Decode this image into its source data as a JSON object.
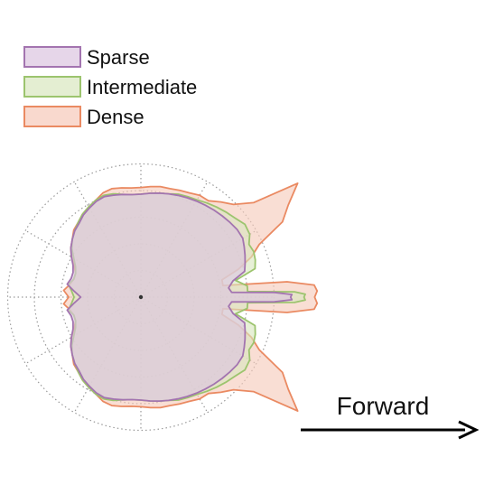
{
  "chart_data": {
    "type": "polar-area",
    "direction_label": "Forward",
    "grid": true,
    "legend_position": "top-left",
    "rings": 5,
    "series": [
      {
        "name": "Dense",
        "fill": "#f6c9b9",
        "stroke": "#ea8a62",
        "points": [
          [
            0,
            1.3
          ],
          [
            2,
            1.32
          ],
          [
            4,
            1.3
          ],
          [
            6,
            1.1
          ],
          [
            8,
            0.62
          ],
          [
            12,
            0.62
          ],
          [
            16,
            0.76
          ],
          [
            20,
            0.88
          ],
          [
            24,
            0.97
          ],
          [
            28,
            1.2
          ],
          [
            32,
            1.3
          ],
          [
            36,
            1.45
          ],
          [
            40,
            1.1
          ],
          [
            45,
            0.98
          ],
          [
            50,
            0.93
          ],
          [
            55,
            0.88
          ],
          [
            60,
            0.88
          ],
          [
            65,
            0.86
          ],
          [
            70,
            0.85
          ],
          [
            75,
            0.84
          ],
          [
            80,
            0.84
          ],
          [
            85,
            0.83
          ],
          [
            90,
            0.82
          ],
          [
            95,
            0.82
          ],
          [
            100,
            0.83
          ],
          [
            105,
            0.84
          ],
          [
            110,
            0.83
          ],
          [
            115,
            0.8
          ],
          [
            120,
            0.78
          ],
          [
            125,
            0.76
          ],
          [
            130,
            0.73
          ],
          [
            135,
            0.71
          ],
          [
            140,
            0.67
          ],
          [
            145,
            0.64
          ],
          [
            150,
            0.6
          ],
          [
            155,
            0.55
          ],
          [
            160,
            0.52
          ],
          [
            165,
            0.52
          ],
          [
            170,
            0.54
          ],
          [
            175,
            0.58
          ],
          [
            180,
            0.54
          ],
          [
            185,
            0.58
          ],
          [
            190,
            0.54
          ],
          [
            195,
            0.52
          ],
          [
            200,
            0.52
          ],
          [
            205,
            0.55
          ],
          [
            210,
            0.6
          ],
          [
            215,
            0.64
          ],
          [
            220,
            0.67
          ],
          [
            225,
            0.71
          ],
          [
            230,
            0.73
          ],
          [
            235,
            0.76
          ],
          [
            240,
            0.78
          ],
          [
            245,
            0.8
          ],
          [
            250,
            0.83
          ],
          [
            255,
            0.84
          ],
          [
            260,
            0.83
          ],
          [
            265,
            0.82
          ],
          [
            270,
            0.82
          ],
          [
            275,
            0.83
          ],
          [
            280,
            0.84
          ],
          [
            285,
            0.84
          ],
          [
            290,
            0.85
          ],
          [
            295,
            0.86
          ],
          [
            300,
            0.88
          ],
          [
            305,
            0.88
          ],
          [
            310,
            0.93
          ],
          [
            315,
            0.98
          ],
          [
            320,
            1.1
          ],
          [
            324,
            1.45
          ],
          [
            328,
            1.3
          ],
          [
            332,
            1.2
          ],
          [
            336,
            0.97
          ],
          [
            340,
            0.88
          ],
          [
            344,
            0.76
          ],
          [
            348,
            0.62
          ],
          [
            352,
            0.62
          ],
          [
            354,
            1.1
          ],
          [
            356,
            1.3
          ],
          [
            358,
            1.32
          ]
        ]
      },
      {
        "name": "Intermediate",
        "fill": "#d9e7bf",
        "stroke": "#9cc46e",
        "points": [
          [
            0,
            1.22
          ],
          [
            1,
            1.23
          ],
          [
            2,
            1.15
          ],
          [
            3,
            0.8
          ],
          [
            6,
            0.8
          ],
          [
            10,
            0.72
          ],
          [
            14,
            0.88
          ],
          [
            18,
            0.9
          ],
          [
            22,
            0.91
          ],
          [
            26,
            0.9
          ],
          [
            30,
            0.94
          ],
          [
            35,
            0.95
          ],
          [
            40,
            0.92
          ],
          [
            45,
            0.9
          ],
          [
            50,
            0.88
          ],
          [
            55,
            0.86
          ],
          [
            60,
            0.84
          ],
          [
            65,
            0.83
          ],
          [
            70,
            0.82
          ],
          [
            75,
            0.8
          ],
          [
            80,
            0.79
          ],
          [
            85,
            0.78
          ],
          [
            90,
            0.77
          ],
          [
            95,
            0.77
          ],
          [
            100,
            0.78
          ],
          [
            105,
            0.8
          ],
          [
            110,
            0.81
          ],
          [
            115,
            0.8
          ],
          [
            120,
            0.78
          ],
          [
            125,
            0.76
          ],
          [
            130,
            0.73
          ],
          [
            135,
            0.7
          ],
          [
            140,
            0.67
          ],
          [
            145,
            0.63
          ],
          [
            150,
            0.58
          ],
          [
            155,
            0.54
          ],
          [
            160,
            0.52
          ],
          [
            165,
            0.52
          ],
          [
            170,
            0.55
          ],
          [
            175,
            0.52
          ],
          [
            180,
            0.5
          ],
          [
            185,
            0.52
          ],
          [
            190,
            0.55
          ],
          [
            195,
            0.52
          ],
          [
            200,
            0.52
          ],
          [
            205,
            0.54
          ],
          [
            210,
            0.58
          ],
          [
            215,
            0.63
          ],
          [
            220,
            0.67
          ],
          [
            225,
            0.7
          ],
          [
            230,
            0.73
          ],
          [
            235,
            0.76
          ],
          [
            240,
            0.78
          ],
          [
            245,
            0.8
          ],
          [
            250,
            0.81
          ],
          [
            255,
            0.8
          ],
          [
            260,
            0.78
          ],
          [
            265,
            0.77
          ],
          [
            270,
            0.77
          ],
          [
            275,
            0.78
          ],
          [
            280,
            0.79
          ],
          [
            285,
            0.8
          ],
          [
            290,
            0.82
          ],
          [
            295,
            0.83
          ],
          [
            300,
            0.84
          ],
          [
            305,
            0.86
          ],
          [
            310,
            0.88
          ],
          [
            315,
            0.9
          ],
          [
            320,
            0.92
          ],
          [
            325,
            0.95
          ],
          [
            330,
            0.94
          ],
          [
            334,
            0.9
          ],
          [
            338,
            0.91
          ],
          [
            342,
            0.9
          ],
          [
            346,
            0.88
          ],
          [
            350,
            0.72
          ],
          [
            354,
            0.8
          ],
          [
            357,
            0.8
          ],
          [
            358,
            1.15
          ],
          [
            359,
            1.23
          ]
        ]
      },
      {
        "name": "Sparse",
        "fill": "#dcc5e0",
        "stroke": "#a374b0",
        "points": [
          [
            0,
            1.12
          ],
          [
            1,
            1.13
          ],
          [
            2,
            1.0
          ],
          [
            3,
            0.68
          ],
          [
            6,
            0.66
          ],
          [
            10,
            0.7
          ],
          [
            14,
            0.8
          ],
          [
            18,
            0.82
          ],
          [
            22,
            0.84
          ],
          [
            26,
            0.86
          ],
          [
            30,
            0.88
          ],
          [
            35,
            0.88
          ],
          [
            40,
            0.87
          ],
          [
            45,
            0.86
          ],
          [
            50,
            0.85
          ],
          [
            55,
            0.84
          ],
          [
            60,
            0.83
          ],
          [
            65,
            0.82
          ],
          [
            70,
            0.81
          ],
          [
            75,
            0.8
          ],
          [
            80,
            0.79
          ],
          [
            85,
            0.78
          ],
          [
            90,
            0.77
          ],
          [
            95,
            0.77
          ],
          [
            100,
            0.78
          ],
          [
            105,
            0.79
          ],
          [
            110,
            0.8
          ],
          [
            115,
            0.79
          ],
          [
            120,
            0.77
          ],
          [
            125,
            0.75
          ],
          [
            130,
            0.72
          ],
          [
            135,
            0.7
          ],
          [
            140,
            0.67
          ],
          [
            145,
            0.64
          ],
          [
            150,
            0.6
          ],
          [
            155,
            0.56
          ],
          [
            160,
            0.54
          ],
          [
            165,
            0.54
          ],
          [
            170,
            0.56
          ],
          [
            175,
            0.5
          ],
          [
            180,
            0.45
          ],
          [
            185,
            0.5
          ],
          [
            190,
            0.56
          ],
          [
            195,
            0.54
          ],
          [
            200,
            0.54
          ],
          [
            205,
            0.56
          ],
          [
            210,
            0.6
          ],
          [
            215,
            0.64
          ],
          [
            220,
            0.67
          ],
          [
            225,
            0.7
          ],
          [
            230,
            0.72
          ],
          [
            235,
            0.75
          ],
          [
            240,
            0.77
          ],
          [
            245,
            0.79
          ],
          [
            250,
            0.8
          ],
          [
            255,
            0.79
          ],
          [
            260,
            0.78
          ],
          [
            265,
            0.77
          ],
          [
            270,
            0.77
          ],
          [
            275,
            0.78
          ],
          [
            280,
            0.79
          ],
          [
            285,
            0.8
          ],
          [
            290,
            0.81
          ],
          [
            295,
            0.82
          ],
          [
            300,
            0.83
          ],
          [
            305,
            0.84
          ],
          [
            310,
            0.85
          ],
          [
            315,
            0.86
          ],
          [
            320,
            0.87
          ],
          [
            325,
            0.88
          ],
          [
            330,
            0.88
          ],
          [
            334,
            0.86
          ],
          [
            338,
            0.84
          ],
          [
            342,
            0.82
          ],
          [
            346,
            0.8
          ],
          [
            350,
            0.7
          ],
          [
            354,
            0.66
          ],
          [
            357,
            0.68
          ],
          [
            358,
            1.0
          ],
          [
            359,
            1.13
          ]
        ]
      }
    ],
    "legend": [
      {
        "label": "Sparse",
        "fill": "#dcc5e0",
        "stroke": "#a374b0"
      },
      {
        "label": "Intermediate",
        "fill": "#d9e7bf",
        "stroke": "#9cc46e"
      },
      {
        "label": "Dense",
        "fill": "#f6c9b9",
        "stroke": "#ea8a62"
      }
    ]
  }
}
